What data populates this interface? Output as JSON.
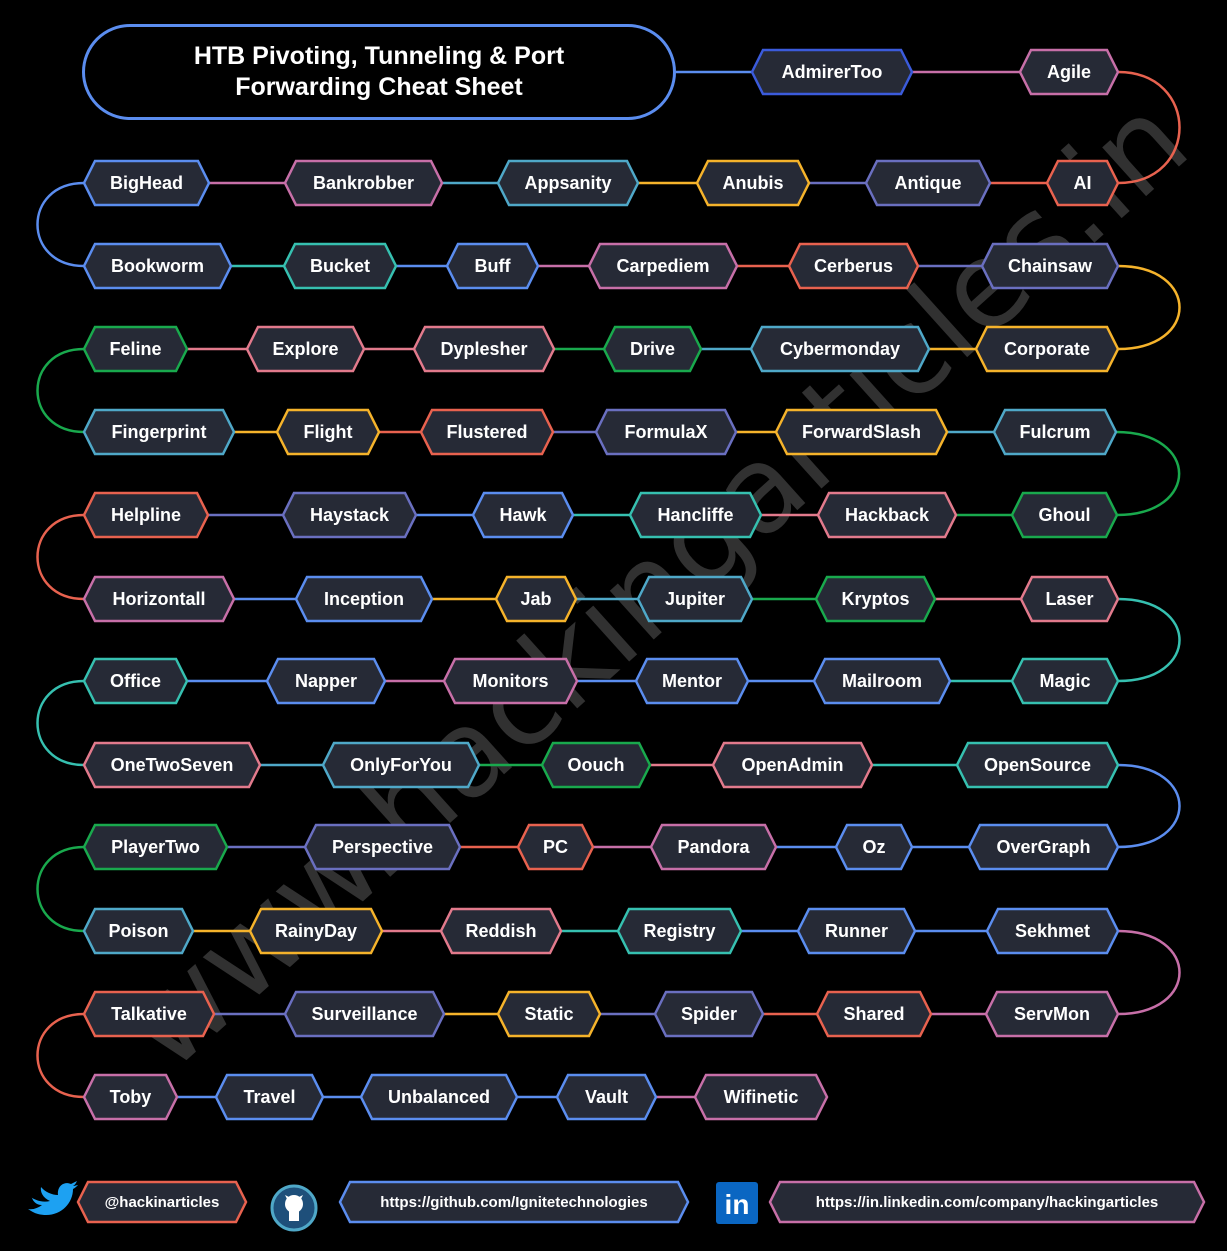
{
  "title": "HTB Pivoting, Tunneling &  Port Forwarding Cheat Sheet",
  "watermark": "www.hackingarticles.in",
  "colors": {
    "background": "#000000",
    "node_fill": "#262a36",
    "title_border": "#5b8def"
  },
  "rows": [
    [
      "AdmirerToo",
      "Agile"
    ],
    [
      "BigHead",
      "Bankrobber",
      "Appsanity",
      "Anubis",
      "Antique",
      "AI"
    ],
    [
      "Bookworm",
      "Bucket",
      "Buff",
      "Carpediem",
      "Cerberus",
      "Chainsaw"
    ],
    [
      "Feline",
      "Explore",
      "Dyplesher",
      "Drive",
      "Cybermonday",
      "Corporate"
    ],
    [
      "Fingerprint",
      "Flight",
      "Flustered",
      "FormulaX",
      "ForwardSlash",
      "Fulcrum"
    ],
    [
      "Helpline",
      "Haystack",
      "Hawk",
      "Hancliffe",
      "Hackback",
      "Ghoul"
    ],
    [
      "Horizontall",
      "Inception",
      "Jab",
      "Jupiter",
      "Kryptos",
      "Laser"
    ],
    [
      "Office",
      "Napper",
      "Monitors",
      "Mentor",
      "Mailroom",
      "Magic"
    ],
    [
      "OneTwoSeven",
      "OnlyForYou",
      "Oouch",
      "OpenAdmin",
      "OpenSource"
    ],
    [
      "PlayerTwo",
      "Perspective",
      "PC",
      "Pandora",
      "Oz",
      "OverGraph"
    ],
    [
      "Poison",
      "RainyDay",
      "Reddish",
      "Registry",
      "Runner",
      "Sekhmet"
    ],
    [
      "Talkative",
      "Surveillance",
      "Static",
      "Spider",
      "Shared",
      "ServMon"
    ],
    [
      "Toby",
      "Travel",
      "Unbalanced",
      "Vault",
      "Wifinetic"
    ]
  ],
  "row_colors": [
    [
      "#3b5bdb",
      "#c76fa8"
    ],
    [
      "#5b8def",
      "#c76fa8",
      "#4fa8c8",
      "#f5b32b",
      "#6a6fc0",
      "#e8624f"
    ],
    [
      "#5b8def",
      "#36c0b0",
      "#5b8def",
      "#c76fa8",
      "#e8624f",
      "#6a6fc0"
    ],
    [
      "#19a94d",
      "#e27a8c",
      "#e27a8c",
      "#19a94d",
      "#4fa8c8",
      "#f5b32b"
    ],
    [
      "#4fa8c8",
      "#f5b32b",
      "#e8624f",
      "#6a6fc0",
      "#f5b32b",
      "#4fa8c8"
    ],
    [
      "#e8624f",
      "#6a6fc0",
      "#5b8def",
      "#36c0b0",
      "#e27a8c",
      "#19a94d"
    ],
    [
      "#c76fa8",
      "#5b8def",
      "#f5b32b",
      "#4fa8c8",
      "#19a94d",
      "#e27a8c"
    ],
    [
      "#36c0b0",
      "#5b8def",
      "#c76fa8",
      "#5b8def",
      "#5b8def",
      "#36c0b0"
    ],
    [
      "#e27a8c",
      "#4fa8c8",
      "#19a94d",
      "#e27a8c",
      "#36c0b0"
    ],
    [
      "#19a94d",
      "#6a6fc0",
      "#e8624f",
      "#c76fa8",
      "#5b8def",
      "#5b8def"
    ],
    [
      "#4fa8c8",
      "#f5b32b",
      "#e27a8c",
      "#36c0b0",
      "#5b8def",
      "#5b8def"
    ],
    [
      "#e8624f",
      "#6a6fc0",
      "#f5b32b",
      "#6a6fc0",
      "#e8624f",
      "#c76fa8"
    ],
    [
      "#c76fa8",
      "#5b8def",
      "#5b8def",
      "#5b8def",
      "#c76fa8"
    ]
  ],
  "footer": {
    "twitter_handle": "@hackinarticles",
    "github_url": "https://github.com/Ignitetechnologies",
    "linkedin_url": "https://in.linkedin.com/company/hackingarticles",
    "linkedin_logo_text": "in",
    "twitter_color": "#1da1f2",
    "linkedin_color": "#0a66c2"
  }
}
